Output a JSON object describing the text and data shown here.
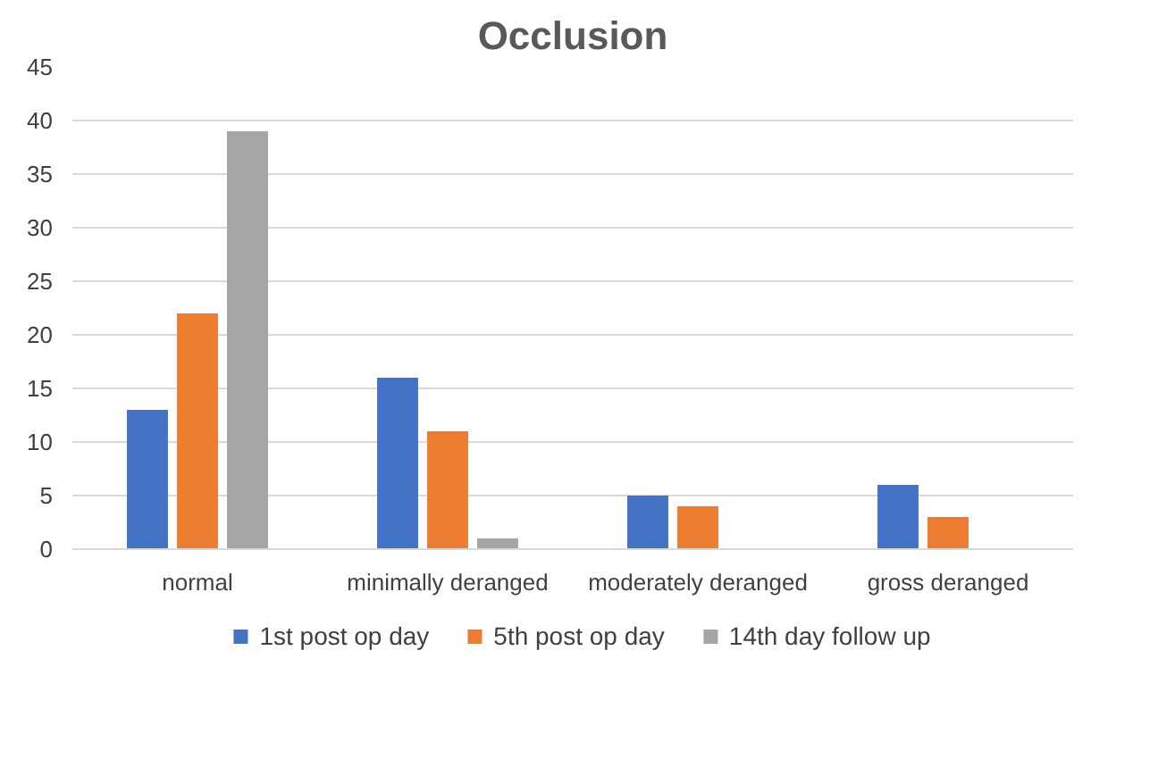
{
  "chart_data": {
    "type": "bar",
    "title": "Occlusion",
    "categories": [
      "normal",
      "minimally deranged",
      "moderately deranged",
      "gross deranged"
    ],
    "series": [
      {
        "name": "1st post op day",
        "color": "#4472c4",
        "values": [
          13,
          16,
          5,
          6
        ]
      },
      {
        "name": "5th post op day",
        "color": "#ed7d31",
        "values": [
          22,
          11,
          4,
          3
        ]
      },
      {
        "name": "14th day follow up",
        "color": "#a5a5a5",
        "values": [
          39,
          1,
          0,
          0
        ]
      }
    ],
    "ylim": [
      0,
      45
    ],
    "yticks": [
      0,
      5,
      10,
      15,
      20,
      25,
      30,
      35,
      40,
      45
    ],
    "grid": "y",
    "legend": "bottom"
  }
}
